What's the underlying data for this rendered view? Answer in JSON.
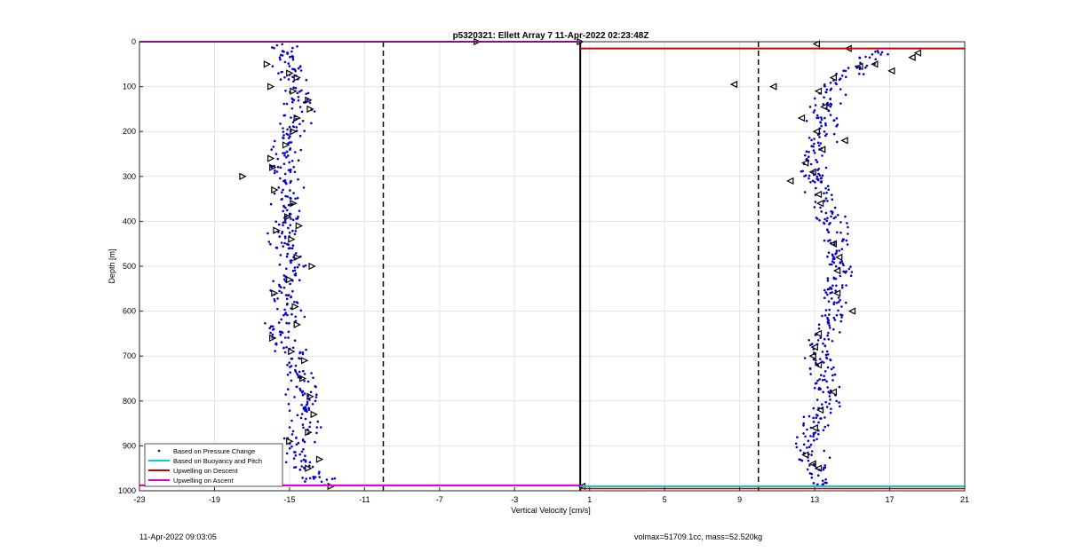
{
  "chart_data": {
    "type": "scatter",
    "title": "p5320321: Ellett Array 7 11-Apr-2022 02:23:48Z",
    "xlabel": "Vertical Velocity [cm/s]",
    "ylabel": "Depth [m]",
    "xlim": [
      -23,
      21
    ],
    "ylim": [
      0,
      1000
    ],
    "y_reversed": true,
    "xticks": [
      -23,
      -19,
      -15,
      -11,
      -7,
      -3,
      1,
      5,
      9,
      13,
      17,
      21
    ],
    "yticks": [
      0,
      100,
      200,
      300,
      400,
      500,
      600,
      700,
      800,
      900,
      1000
    ],
    "grid": true,
    "legend_position": "bottom-left",
    "colors": {
      "pressure_points": "#0000cc",
      "buoyancy": "#00d0d0",
      "upwelling_descent": "#cc0000",
      "upwelling_ascent": "#e000e0",
      "markers": "#000000"
    },
    "series": [
      {
        "name": "Based on Pressure Change",
        "style": "points",
        "profiles": [
          {
            "depth": [
              0,
              50,
              100,
              150,
              200,
              250,
              300,
              350,
              400,
              450,
              500,
              550,
              600,
              650,
              700,
              750,
              800,
              850,
              900,
              950,
              990
            ],
            "center": [
              -15.5,
              -15.0,
              -15.0,
              -14.3,
              -14.9,
              -15.2,
              -15.4,
              -15.0,
              -15.1,
              -15.2,
              -14.9,
              -15.3,
              -15.0,
              -15.5,
              -14.6,
              -14.5,
              -14.2,
              -14.0,
              -14.7,
              -14.2,
              -13.0
            ],
            "spread": 0.8
          },
          {
            "depth": [
              20,
              50,
              100,
              150,
              200,
              250,
              300,
              350,
              400,
              450,
              500,
              550,
              600,
              650,
              700,
              750,
              800,
              850,
              900,
              950,
              990
            ],
            "center": [
              16.2,
              15.5,
              13.9,
              13.6,
              13.3,
              13.0,
              12.8,
              13.4,
              13.8,
              14.1,
              14.2,
              14.1,
              14.0,
              13.5,
              13.2,
              13.5,
              13.6,
              13.1,
              12.5,
              13.0,
              13.4
            ],
            "spread": 0.8
          }
        ]
      },
      {
        "name": "Based on Buoyancy and Pitch",
        "style": "line",
        "x": [
          0.5,
          21
        ],
        "y": [
          990,
          990
        ]
      },
      {
        "name": "Upwelling on Descent",
        "style": "line",
        "x": [
          0.5,
          21
        ],
        "y": [
          15,
          15
        ]
      },
      {
        "name": "Upwelling on Ascent",
        "style": "line",
        "x": [
          -23,
          0.5
        ],
        "y": [
          0,
          0
        ]
      }
    ],
    "bin_markers": {
      "ascent": [
        {
          "depth": 50,
          "v": -16.2
        },
        {
          "depth": 70,
          "v": -15.0
        },
        {
          "depth": 80,
          "v": -14.6
        },
        {
          "depth": 100,
          "v": -16.0
        },
        {
          "depth": 110,
          "v": -14.8
        },
        {
          "depth": 130,
          "v": -14.0
        },
        {
          "depth": 150,
          "v": -13.9
        },
        {
          "depth": 170,
          "v": -14.6
        },
        {
          "depth": 200,
          "v": -14.8
        },
        {
          "depth": 230,
          "v": -15.2
        },
        {
          "depth": 260,
          "v": -16.0
        },
        {
          "depth": 280,
          "v": -15.9
        },
        {
          "depth": 300,
          "v": -17.5
        },
        {
          "depth": 330,
          "v": -15.8
        },
        {
          "depth": 360,
          "v": -14.8
        },
        {
          "depth": 390,
          "v": -15.1
        },
        {
          "depth": 410,
          "v": -14.5
        },
        {
          "depth": 420,
          "v": -15.7
        },
        {
          "depth": 440,
          "v": -14.9
        },
        {
          "depth": 480,
          "v": -14.6
        },
        {
          "depth": 500,
          "v": -13.8
        },
        {
          "depth": 530,
          "v": -15.0
        },
        {
          "depth": 560,
          "v": -15.8
        },
        {
          "depth": 590,
          "v": -14.7
        },
        {
          "depth": 630,
          "v": -14.6
        },
        {
          "depth": 660,
          "v": -15.9
        },
        {
          "depth": 690,
          "v": -14.9
        },
        {
          "depth": 710,
          "v": -14.2
        },
        {
          "depth": 750,
          "v": -14.3
        },
        {
          "depth": 790,
          "v": -13.9
        },
        {
          "depth": 830,
          "v": -13.7
        },
        {
          "depth": 870,
          "v": -14.0
        },
        {
          "depth": 890,
          "v": -15.0
        },
        {
          "depth": 930,
          "v": -13.4
        },
        {
          "depth": 950,
          "v": -14.0
        },
        {
          "depth": 990,
          "v": -12.8
        },
        {
          "depth": 0,
          "v": -5.0
        },
        {
          "depth": 0,
          "v": 0.5
        }
      ],
      "descent": [
        {
          "depth": 5,
          "v": 13.1
        },
        {
          "depth": 15,
          "v": 14.8
        },
        {
          "depth": 25,
          "v": 18.5
        },
        {
          "depth": 35,
          "v": 18.2
        },
        {
          "depth": 50,
          "v": 16.2
        },
        {
          "depth": 55,
          "v": 15.4
        },
        {
          "depth": 65,
          "v": 17.1
        },
        {
          "depth": 80,
          "v": 14.0
        },
        {
          "depth": 95,
          "v": 8.7
        },
        {
          "depth": 100,
          "v": 10.8
        },
        {
          "depth": 110,
          "v": 13.2
        },
        {
          "depth": 145,
          "v": 13.5
        },
        {
          "depth": 170,
          "v": 12.3
        },
        {
          "depth": 200,
          "v": 13.1
        },
        {
          "depth": 220,
          "v": 14.6
        },
        {
          "depth": 240,
          "v": 13.4
        },
        {
          "depth": 270,
          "v": 12.5
        },
        {
          "depth": 290,
          "v": 12.9
        },
        {
          "depth": 310,
          "v": 11.7
        },
        {
          "depth": 340,
          "v": 13.2
        },
        {
          "depth": 360,
          "v": 13.3
        },
        {
          "depth": 450,
          "v": 14.0
        },
        {
          "depth": 480,
          "v": 14.3
        },
        {
          "depth": 510,
          "v": 14.2
        },
        {
          "depth": 560,
          "v": 14.2
        },
        {
          "depth": 600,
          "v": 15.0
        },
        {
          "depth": 650,
          "v": 13.2
        },
        {
          "depth": 680,
          "v": 13.0
        },
        {
          "depth": 700,
          "v": 12.9
        },
        {
          "depth": 720,
          "v": 13.2
        },
        {
          "depth": 780,
          "v": 14.0
        },
        {
          "depth": 820,
          "v": 13.3
        },
        {
          "depth": 860,
          "v": 13.0
        },
        {
          "depth": 920,
          "v": 12.5
        },
        {
          "depth": 940,
          "v": 12.9
        },
        {
          "depth": 950,
          "v": 13.2
        },
        {
          "depth": 990,
          "v": 0.6
        }
      ]
    },
    "reference_lines": {
      "zero_velocity_x": 0.5,
      "dashed_x": [
        -10,
        10
      ]
    },
    "legend": [
      {
        "label": "Based on Pressure Change",
        "color": "#0000cc",
        "style": "point"
      },
      {
        "label": "Based on Buoyancy and Pitch",
        "color": "#00d0d0",
        "style": "line"
      },
      {
        "label": "Upwelling on Descent",
        "color": "#cc0000",
        "style": "line"
      },
      {
        "label": "Upwelling on Ascent",
        "color": "#e000e0",
        "style": "line"
      }
    ]
  },
  "footer": {
    "left": "11-Apr-2022 09:03:05",
    "right": "volmax=51709.1cc, mass=52.520kg"
  }
}
